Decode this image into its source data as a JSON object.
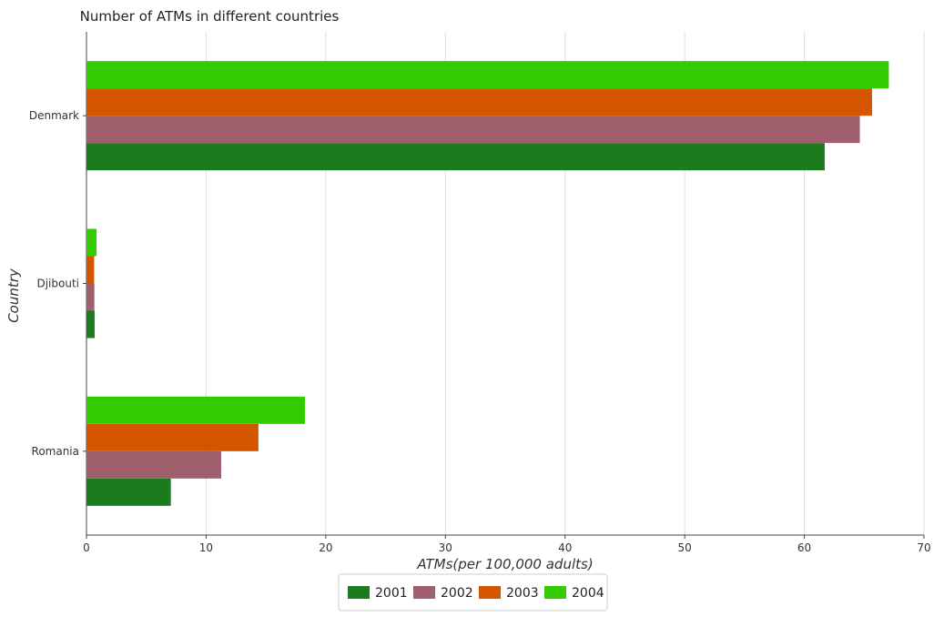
{
  "chart_data": {
    "type": "bar",
    "orientation": "horizontal",
    "title": "Number of ATMs in different countries",
    "xlabel": "ATMs(per 100,000 adults)",
    "ylabel": "Country",
    "categories": [
      "Denmark",
      "Djibouti",
      "Romania"
    ],
    "series": [
      {
        "name": "2001",
        "color": "#1e7a1e",
        "values": [
          61.7,
          0.68,
          7.05
        ]
      },
      {
        "name": "2002",
        "color": "#a05f6d",
        "values": [
          64.64,
          0.66,
          11.26
        ]
      },
      {
        "name": "2003",
        "color": "#d45500",
        "values": [
          65.66,
          0.64,
          14.37
        ]
      },
      {
        "name": "2004",
        "color": "#33cc00",
        "values": [
          67.06,
          0.84,
          18.26
        ]
      }
    ],
    "xlim": [
      0,
      70
    ],
    "xticks": [
      0,
      10,
      20,
      30,
      40,
      50,
      60,
      70
    ],
    "grid": true,
    "legend_position": "bottom"
  }
}
